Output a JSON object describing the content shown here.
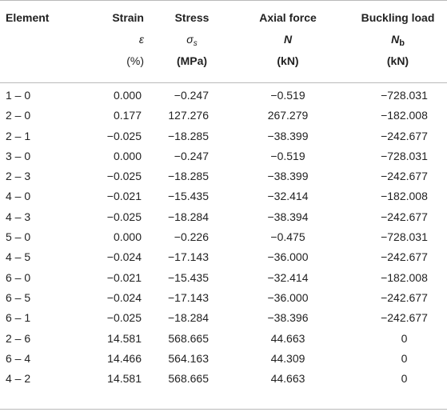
{
  "headers": {
    "element": {
      "label": "Element"
    },
    "strain": {
      "label": "Strain",
      "symbol": "ε",
      "unit": "(%)"
    },
    "stress": {
      "label": "Stress",
      "symbol": "σ",
      "symbol_sub": "s",
      "unit": "(MPa)"
    },
    "axial": {
      "label": "Axial force",
      "symbol": "N",
      "unit": "(kN)"
    },
    "buckling": {
      "label": "Buckling load",
      "symbol": "N",
      "symbol_sub": "b",
      "unit": "(kN)"
    }
  },
  "rows": [
    {
      "element": "1 – 0",
      "strain": "0.000",
      "stress": "−0.247",
      "axial": "−0.519",
      "buckling": "−728.031"
    },
    {
      "element": "2 – 0",
      "strain": "0.177",
      "stress": "127.276",
      "axial": "267.279",
      "buckling": "−182.008"
    },
    {
      "element": "2 – 1",
      "strain": "−0.025",
      "stress": "−18.285",
      "axial": "−38.399",
      "buckling": "−242.677"
    },
    {
      "element": "3 – 0",
      "strain": "0.000",
      "stress": "−0.247",
      "axial": "−0.519",
      "buckling": "−728.031"
    },
    {
      "element": "2 – 3",
      "strain": "−0.025",
      "stress": "−18.285",
      "axial": "−38.399",
      "buckling": "−242.677"
    },
    {
      "element": "4 – 0",
      "strain": "−0.021",
      "stress": "−15.435",
      "axial": "−32.414",
      "buckling": "−182.008"
    },
    {
      "element": "4 – 3",
      "strain": "−0.025",
      "stress": "−18.284",
      "axial": "−38.394",
      "buckling": "−242.677"
    },
    {
      "element": "5 – 0",
      "strain": "0.000",
      "stress": "−0.226",
      "axial": "−0.475",
      "buckling": "−728.031"
    },
    {
      "element": "4 – 5",
      "strain": "−0.024",
      "stress": "−17.143",
      "axial": "−36.000",
      "buckling": "−242.677"
    },
    {
      "element": "6 – 0",
      "strain": "−0.021",
      "stress": "−15.435",
      "axial": "−32.414",
      "buckling": "−182.008"
    },
    {
      "element": "6 – 5",
      "strain": "−0.024",
      "stress": "−17.143",
      "axial": "−36.000",
      "buckling": "−242.677"
    },
    {
      "element": "6 – 1",
      "strain": "−0.025",
      "stress": "−18.284",
      "axial": "−38.396",
      "buckling": "−242.677"
    },
    {
      "element": "2 – 6",
      "strain": "14.581",
      "stress": "568.665",
      "axial": "44.663",
      "buckling": "0"
    },
    {
      "element": "6 – 4",
      "strain": "14.466",
      "stress": "564.163",
      "axial": "44.309",
      "buckling": "0"
    },
    {
      "element": "4 – 2",
      "strain": "14.581",
      "stress": "568.665",
      "axial": "44.663",
      "buckling": "0"
    }
  ]
}
